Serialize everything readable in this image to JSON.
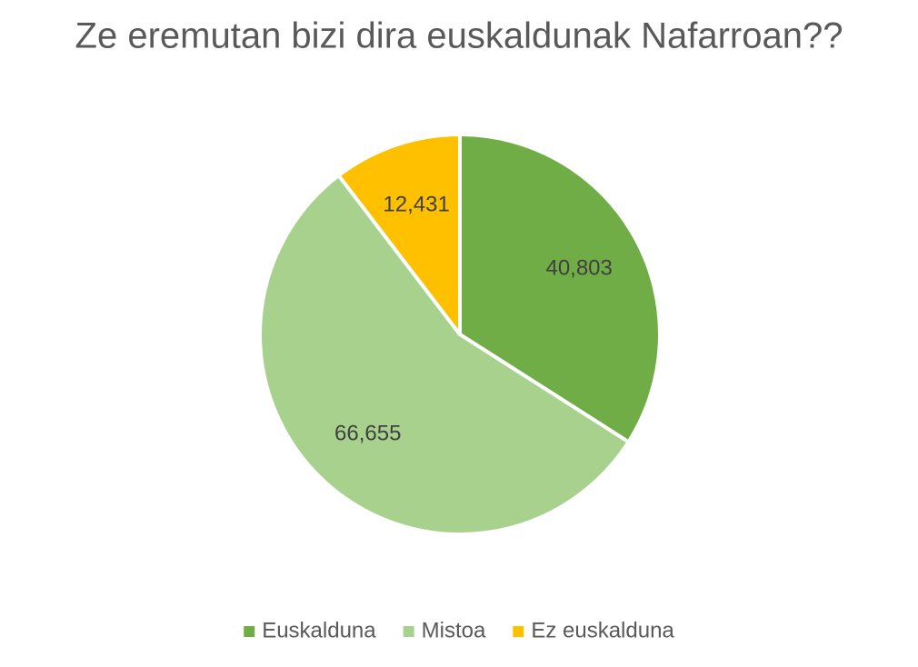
{
  "chart_data": {
    "type": "pie",
    "title": "Ze eremutan bizi dira euskaldunak Nafarroan??",
    "categories": [
      "Euskalduna",
      "Mistoa",
      "Ez euskalduna"
    ],
    "values": [
      40803,
      66655,
      12431
    ],
    "value_labels": [
      "40,803",
      "66,655",
      "12,431"
    ],
    "colors": [
      "#70ad47",
      "#a9d18e",
      "#ffc000"
    ],
    "legend": "bottom"
  }
}
